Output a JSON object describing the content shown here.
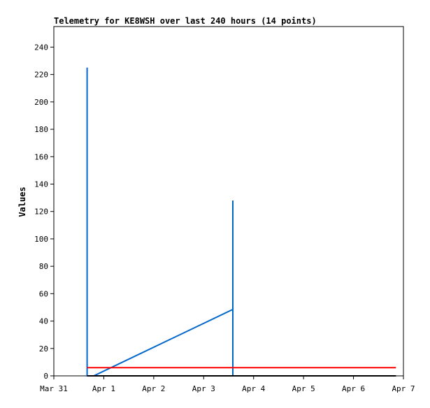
{
  "chart_data": {
    "type": "line",
    "title": "Telemetry for KE8WSH over last 240 hours (14 points)",
    "ylabel": "Values",
    "xlabel": "",
    "ylim": [
      0,
      255
    ],
    "xlim": [
      "Mar 31 00:00",
      "Apr 7 00:00"
    ],
    "x_ticks": [
      "Mar 31",
      "Apr 1",
      "Apr 2",
      "Apr 3",
      "Apr 4",
      "Apr 5",
      "Apr 6",
      "Apr 7"
    ],
    "y_ticks": [
      0,
      20,
      40,
      60,
      80,
      100,
      120,
      140,
      160,
      180,
      200,
      220,
      240
    ],
    "grid": false,
    "series": [
      {
        "color": "#0066cc",
        "points": [
          [
            "Mar 31 16:00",
            225
          ],
          [
            "Mar 31 16:00",
            0
          ],
          [
            "Mar 31 19:12",
            0
          ],
          [
            "Apr 3 14:00",
            48.5
          ],
          [
            "Apr 3 14:00",
            128
          ],
          [
            "Apr 3 14:00",
            0
          ],
          [
            "Apr 6 20:24",
            0
          ]
        ]
      },
      {
        "color": "#ff0000",
        "points": [
          [
            "Mar 31 16:00",
            6
          ],
          [
            "Apr 6 20:24",
            6
          ]
        ]
      },
      {
        "color": "#000000",
        "points": [
          [
            "Mar 31 16:00",
            0
          ],
          [
            "Apr 6 20:24",
            0
          ]
        ]
      }
    ]
  }
}
